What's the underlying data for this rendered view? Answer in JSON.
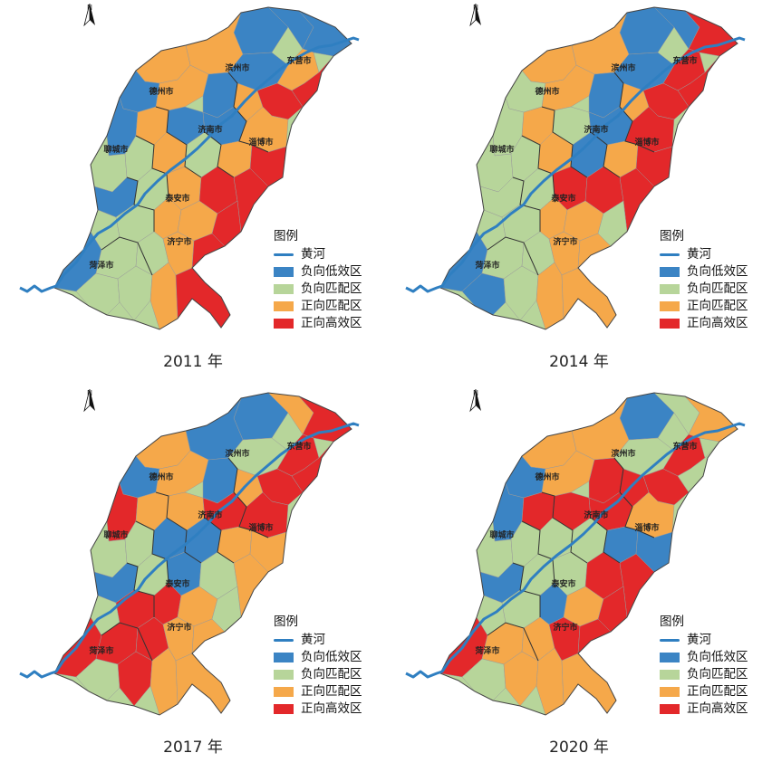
{
  "panels": [
    {
      "year_label": "2011 年"
    },
    {
      "year_label": "2014 年"
    },
    {
      "year_label": "2017 年"
    },
    {
      "year_label": "2020 年"
    }
  ],
  "legend": {
    "title": "图例",
    "river": {
      "label": "黄河",
      "color": "#2f7fc1"
    },
    "categories": [
      {
        "label": "负向低效区",
        "color": "#3b84c4"
      },
      {
        "label": "负向匹配区",
        "color": "#b7d59a"
      },
      {
        "label": "正向匹配区",
        "color": "#f5a84a"
      },
      {
        "label": "正向高效区",
        "color": "#e3282a"
      }
    ]
  },
  "north_label": "N",
  "cities": [
    "滨州市",
    "东营市",
    "德州市",
    "济南市",
    "淄博市",
    "聊城市",
    "泰安市",
    "济宁市",
    "菏泽市"
  ]
}
